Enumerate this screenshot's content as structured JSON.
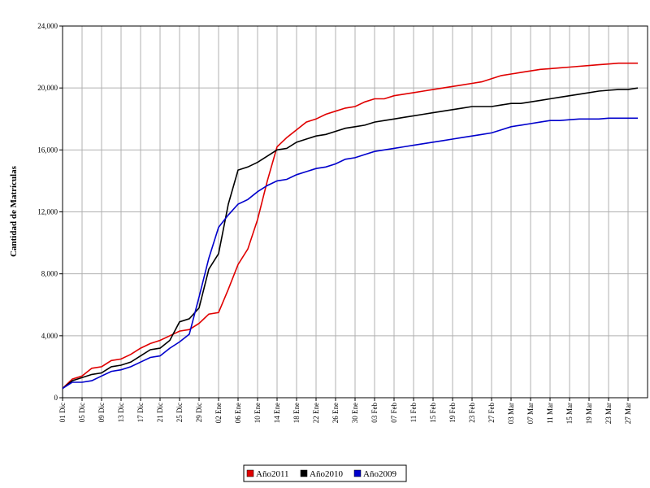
{
  "chart_data": {
    "type": "line",
    "y_label": "Cantidad de Matrículas",
    "categories": [
      "01 Dic",
      null,
      "05 Dic",
      null,
      "09 Dic",
      null,
      "13 Dic",
      null,
      "17 Dic",
      null,
      "21 Dic",
      null,
      "25 Dic",
      null,
      "29 Dic",
      null,
      "02 Ene",
      null,
      "06 Ene",
      null,
      "10 Ene",
      null,
      "14 Ene",
      null,
      "18 Ene",
      null,
      "22 Ene",
      null,
      "26 Ene",
      null,
      "30 Ene",
      null,
      "03 Feb",
      null,
      "07 Feb",
      null,
      "11 Feb",
      null,
      "15 Feb",
      null,
      "19 Feb",
      null,
      "23 Feb",
      null,
      "27 Feb",
      null,
      "03 Mar",
      null,
      "07 Mar",
      null,
      "11 Mar",
      null,
      "15 Mar",
      null,
      "19 Mar",
      null,
      "23 Mar",
      null,
      "27 Mar",
      null,
      null
    ],
    "series": [
      {
        "name": "Año2011",
        "color": "#e00000",
        "values": [
          600,
          1200,
          1400,
          1900,
          2000,
          2400,
          2500,
          2800,
          3200,
          3500,
          3700,
          4000,
          4300,
          4400,
          4800,
          5400,
          5500,
          7000,
          8600,
          9600,
          11500,
          14000,
          16200,
          16800,
          17300,
          17800,
          18000,
          18300,
          18500,
          18700,
          18800,
          19100,
          19300,
          19300,
          19500,
          19600,
          19700,
          19800,
          19900,
          20000,
          20100,
          20200,
          20300,
          20400,
          20600,
          20800,
          20900,
          21000,
          21100,
          21200,
          21250,
          21300,
          21350,
          21400,
          21450,
          21500,
          21550,
          21600,
          21600,
          21600,
          null
        ]
      },
      {
        "name": "Año2010",
        "color": "#000000",
        "values": [
          600,
          1100,
          1300,
          1500,
          1600,
          2000,
          2100,
          2300,
          2700,
          3100,
          3200,
          3700,
          4900,
          5100,
          5800,
          8300,
          9300,
          12500,
          14700,
          14900,
          15200,
          15600,
          16000,
          16100,
          16500,
          16700,
          16900,
          17000,
          17200,
          17400,
          17500,
          17600,
          17800,
          17900,
          18000,
          18100,
          18200,
          18300,
          18400,
          18500,
          18600,
          18700,
          18800,
          18800,
          18800,
          18900,
          19000,
          19000,
          19100,
          19200,
          19300,
          19400,
          19500,
          19600,
          19700,
          19800,
          19850,
          19900,
          19900,
          20000,
          null
        ]
      },
      {
        "name": "Año2009",
        "color": "#0000cc",
        "values": [
          600,
          1000,
          1000,
          1100,
          1400,
          1700,
          1800,
          2000,
          2300,
          2600,
          2700,
          3200,
          3600,
          4100,
          6500,
          9000,
          11000,
          11800,
          12500,
          12800,
          13300,
          13700,
          14000,
          14100,
          14400,
          14600,
          14800,
          14900,
          15100,
          15400,
          15500,
          15700,
          15900,
          16000,
          16100,
          16200,
          16300,
          16400,
          16500,
          16600,
          16700,
          16800,
          16900,
          17000,
          17100,
          17300,
          17500,
          17600,
          17700,
          17800,
          17900,
          17900,
          17950,
          18000,
          18000,
          18000,
          18050,
          18050,
          18050,
          18050,
          null
        ]
      }
    ],
    "ylim": [
      0,
      24000
    ],
    "yticks": [
      0,
      {
        "value": 4000,
        "label": "4,000"
      },
      {
        "value": 8000,
        "label": "8,000"
      },
      {
        "value": 12000,
        "label": "12,000"
      },
      {
        "value": 16000,
        "label": "16,000"
      },
      {
        "value": 20000,
        "label": "20,000"
      },
      {
        "value": 24000,
        "label": "24,000"
      }
    ],
    "grid": true,
    "legend": "bottom"
  }
}
